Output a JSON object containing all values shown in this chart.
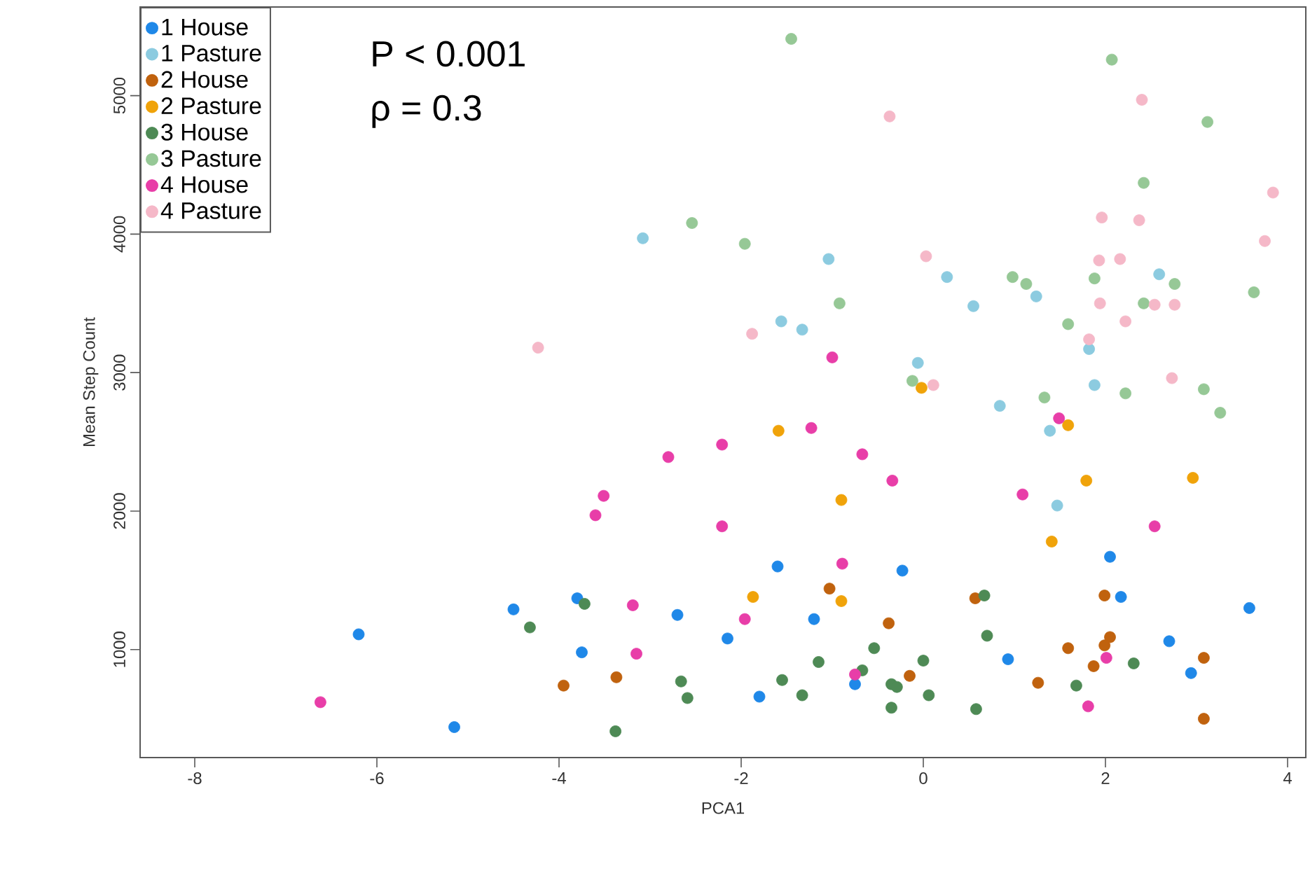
{
  "chart_data": {
    "type": "scatter",
    "xlabel": "PCA1",
    "ylabel": "Mean Step Count",
    "xlim": [
      -8.6,
      4.2
    ],
    "ylim": [
      220,
      5640
    ],
    "xticks": [
      -8,
      -6,
      -4,
      -2,
      0,
      2,
      4
    ],
    "yticks": [
      1000,
      2000,
      3000,
      4000,
      5000
    ],
    "grid": false,
    "legend": "top left",
    "marker": "circle",
    "annotations": [
      "P < 0.001",
      "ρ = 0.3"
    ],
    "series": [
      {
        "name": "1 House",
        "color": "#1f88e8",
        "x": [
          -6.2,
          -5.15,
          -4.5,
          -3.8,
          -3.75,
          -2.7,
          -2.15,
          -1.8,
          -1.6,
          -1.2,
          -0.75,
          -0.23,
          0.93,
          2.05,
          2.17,
          2.7,
          2.94,
          3.58
        ],
        "values": [
          1110,
          440,
          1290,
          1370,
          980,
          1250,
          1080,
          660,
          1600,
          1220,
          750,
          1570,
          930,
          1670,
          1380,
          1060,
          830,
          1300
        ]
      },
      {
        "name": "1 Pasture",
        "color": "#8ccbe0",
        "x": [
          -3.08,
          -1.04,
          -1.56,
          -1.33,
          0.26,
          0.55,
          1.24,
          2.59,
          1.82,
          -0.06,
          1.88,
          0.84,
          1.39,
          1.47
        ],
        "values": [
          3970,
          3820,
          3370,
          3310,
          3690,
          3480,
          3550,
          3710,
          3170,
          3070,
          2910,
          2760,
          2580,
          2040
        ]
      },
      {
        "name": "2 House",
        "color": "#c0620e",
        "x": [
          -3.95,
          -3.37,
          -1.03,
          -0.38,
          -0.15,
          0.57,
          1.99,
          1.59,
          2.05,
          1.99,
          1.87,
          1.26,
          3.08,
          3.08
        ],
        "values": [
          740,
          800,
          1440,
          1190,
          810,
          1370,
          1390,
          1010,
          1090,
          1030,
          880,
          760,
          940,
          500
        ]
      },
      {
        "name": "2 Pasture",
        "color": "#f0a30a",
        "x": [
          -1.59,
          -0.9,
          -1.87,
          -0.9,
          1.59,
          1.79,
          2.96,
          1.41,
          -0.02
        ],
        "values": [
          2580,
          2080,
          1380,
          1350,
          2620,
          2220,
          2240,
          1780,
          2890
        ]
      },
      {
        "name": "3 House",
        "color": "#4e8a55",
        "x": [
          -3.72,
          -4.32,
          -2.66,
          -2.59,
          -3.38,
          -1.55,
          -1.33,
          -1.15,
          -0.67,
          -0.54,
          -0.35,
          -0.29,
          0.0,
          0.06,
          -0.35,
          0.58,
          0.67,
          0.7,
          1.68,
          2.31
        ],
        "values": [
          1330,
          1160,
          770,
          650,
          410,
          780,
          670,
          910,
          850,
          1010,
          750,
          730,
          920,
          670,
          580,
          570,
          1390,
          1100,
          740,
          900
        ]
      },
      {
        "name": "3 Pasture",
        "color": "#96c896",
        "x": [
          -1.45,
          2.07,
          3.12,
          2.42,
          -1.96,
          -2.54,
          -0.92,
          0.98,
          1.13,
          1.88,
          2.42,
          2.76,
          3.63,
          1.59,
          -0.12,
          1.33,
          2.22,
          3.08,
          3.26
        ],
        "values": [
          5410,
          5260,
          4810,
          4370,
          3930,
          4080,
          3500,
          3690,
          3640,
          3680,
          3500,
          3640,
          3580,
          3350,
          2940,
          2820,
          2850,
          2880,
          2710
        ]
      },
      {
        "name": "4 House",
        "color": "#e83ea8",
        "x": [
          -6.62,
          -3.51,
          -3.6,
          -2.8,
          -3.19,
          -3.15,
          -2.21,
          -2.21,
          -1.23,
          -0.67,
          -0.34,
          -1.96,
          -0.89,
          -0.75,
          1.09,
          1.49,
          2.54,
          2.01,
          1.81,
          -1.0
        ],
        "values": [
          620,
          2110,
          1970,
          2390,
          1320,
          970,
          2480,
          1890,
          2600,
          2410,
          2220,
          1220,
          1620,
          820,
          2120,
          2670,
          1890,
          940,
          590,
          3110
        ]
      },
      {
        "name": "4 Pasture",
        "color": "#f5b8c8",
        "x": [
          -4.23,
          -0.37,
          2.4,
          3.84,
          1.96,
          2.37,
          3.75,
          1.93,
          2.16,
          0.03,
          -1.88,
          1.94,
          2.54,
          2.76,
          2.22,
          1.82,
          2.73,
          0.11
        ],
        "values": [
          3180,
          4850,
          4970,
          4300,
          4120,
          4100,
          3950,
          3810,
          3820,
          3840,
          3280,
          3500,
          3490,
          3490,
          3370,
          3240,
          2960,
          2910
        ]
      }
    ]
  }
}
